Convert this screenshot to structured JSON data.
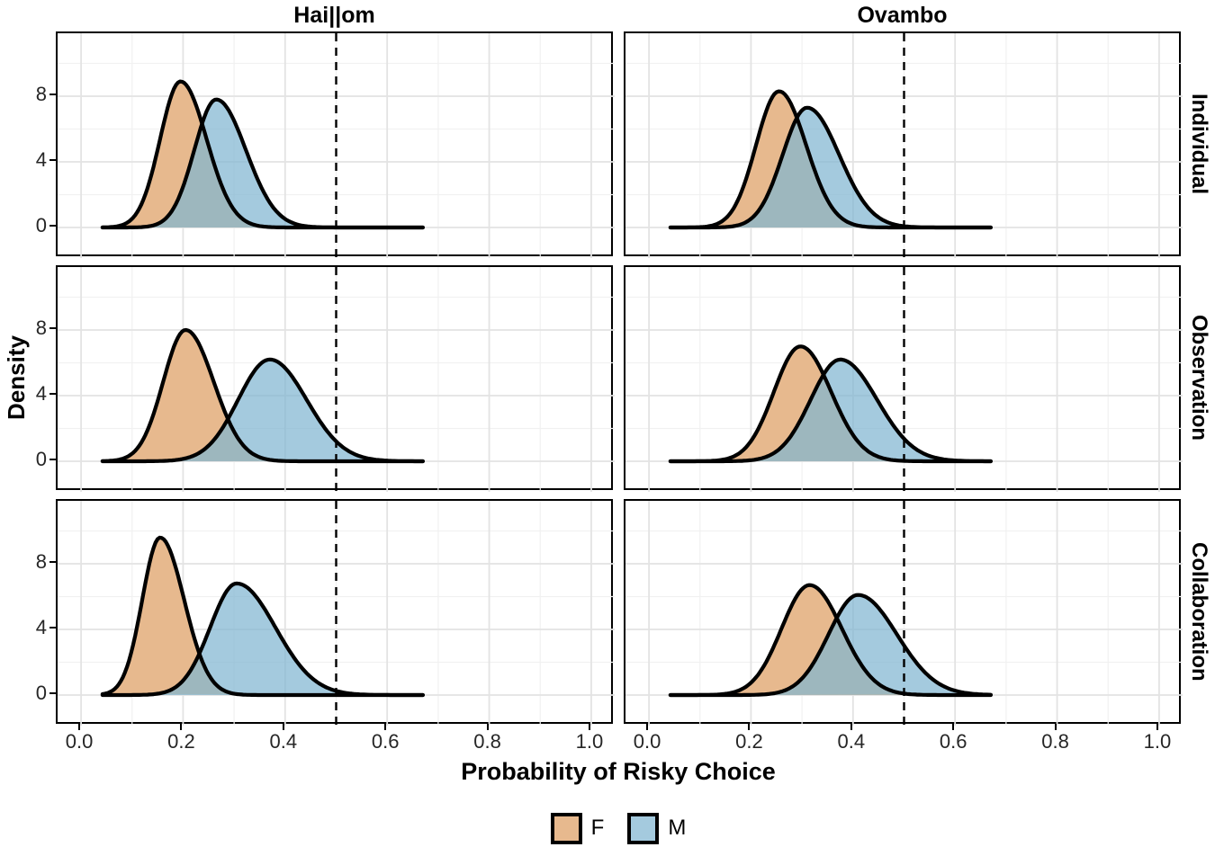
{
  "figure": {
    "col_titles": [
      "Hai||om",
      "Ovambo"
    ],
    "row_labels": [
      "Individual",
      "Observation",
      "Collaboration"
    ],
    "x_axis": {
      "title": "Probability of Risky Choice",
      "ticks": [
        "0.0",
        "0.2",
        "0.4",
        "0.6",
        "0.8",
        "1.0"
      ],
      "tick_values": [
        0,
        0.2,
        0.4,
        0.6,
        0.8,
        1.0
      ]
    },
    "y_axis": {
      "title": "Density",
      "ticks": [
        "0",
        "4",
        "8"
      ],
      "tick_values": [
        0,
        4,
        8
      ]
    },
    "legend": [
      {
        "label": "F",
        "color": "#E7B98E"
      },
      {
        "label": "M",
        "color": "#A4CADE"
      }
    ],
    "colors": {
      "f_fill": "#E7B98E",
      "m_fill_overlay": "rgba(129,181,209,0.72)",
      "m_fill_flat": "#A4CADE",
      "curve_stroke": "#000000",
      "grid_major": "#e3e3e3",
      "grid_minor": "#f1f1f1",
      "panel_border": "#000000",
      "reference_line": "#000000"
    }
  },
  "chart_data": {
    "type": "area",
    "subtype": "overlaid-density-curves",
    "title": "",
    "facet_columns": [
      "Hai||om",
      "Ovambo"
    ],
    "facet_rows": [
      "Individual",
      "Observation",
      "Collaboration"
    ],
    "xlabel": "Probability of Risky Choice",
    "ylabel": "Density",
    "x_ticks": [
      0,
      0.2,
      0.4,
      0.6,
      0.8,
      1.0
    ],
    "y_ticks": [
      0,
      4,
      8
    ],
    "x_minor_ticks": [
      0.1,
      0.3,
      0.5,
      0.7,
      0.9
    ],
    "y_minor_ticks": [
      2,
      6,
      10
    ],
    "xlim": [
      -0.046,
      1.046
    ],
    "ylim": [
      -1.86,
      11.84
    ],
    "grid": true,
    "legend_position": "bottom",
    "reference_line_x": 0.5,
    "reference_line_style": "dashed",
    "baseline_range": [
      0.042,
      0.672
    ],
    "series_colors": {
      "F": "#E7B98E",
      "M": "#A4CADE"
    },
    "panels": [
      {
        "col": "Hai||om",
        "row": "Individual",
        "series": [
          {
            "name": "F",
            "peak_x": 0.195,
            "peak_density": 8.9,
            "sd_left": 0.04,
            "sd_right": 0.051
          },
          {
            "name": "M",
            "peak_x": 0.265,
            "peak_density": 7.8,
            "sd_left": 0.043,
            "sd_right": 0.058
          }
        ]
      },
      {
        "col": "Ovambo",
        "row": "Individual",
        "series": [
          {
            "name": "F",
            "peak_x": 0.255,
            "peak_density": 8.3,
            "sd_left": 0.045,
            "sd_right": 0.053
          },
          {
            "name": "M",
            "peak_x": 0.31,
            "peak_density": 7.3,
            "sd_left": 0.048,
            "sd_right": 0.063
          }
        ]
      },
      {
        "col": "Hai||om",
        "row": "Observation",
        "series": [
          {
            "name": "F",
            "peak_x": 0.205,
            "peak_density": 8.0,
            "sd_left": 0.044,
            "sd_right": 0.055
          },
          {
            "name": "M",
            "peak_x": 0.37,
            "peak_density": 6.2,
            "sd_left": 0.062,
            "sd_right": 0.072
          }
        ]
      },
      {
        "col": "Ovambo",
        "row": "Observation",
        "series": [
          {
            "name": "F",
            "peak_x": 0.297,
            "peak_density": 7.0,
            "sd_left": 0.052,
            "sd_right": 0.06
          },
          {
            "name": "M",
            "peak_x": 0.375,
            "peak_density": 6.2,
            "sd_left": 0.058,
            "sd_right": 0.072
          }
        ]
      },
      {
        "col": "Hai||om",
        "row": "Collaboration",
        "series": [
          {
            "name": "F",
            "peak_x": 0.155,
            "peak_density": 9.6,
            "sd_left": 0.035,
            "sd_right": 0.047
          },
          {
            "name": "M",
            "peak_x": 0.305,
            "peak_density": 6.8,
            "sd_left": 0.052,
            "sd_right": 0.076
          }
        ]
      },
      {
        "col": "Ovambo",
        "row": "Collaboration",
        "series": [
          {
            "name": "F",
            "peak_x": 0.315,
            "peak_density": 6.7,
            "sd_left": 0.055,
            "sd_right": 0.063
          },
          {
            "name": "M",
            "peak_x": 0.41,
            "peak_density": 6.1,
            "sd_left": 0.058,
            "sd_right": 0.076
          }
        ]
      }
    ]
  }
}
